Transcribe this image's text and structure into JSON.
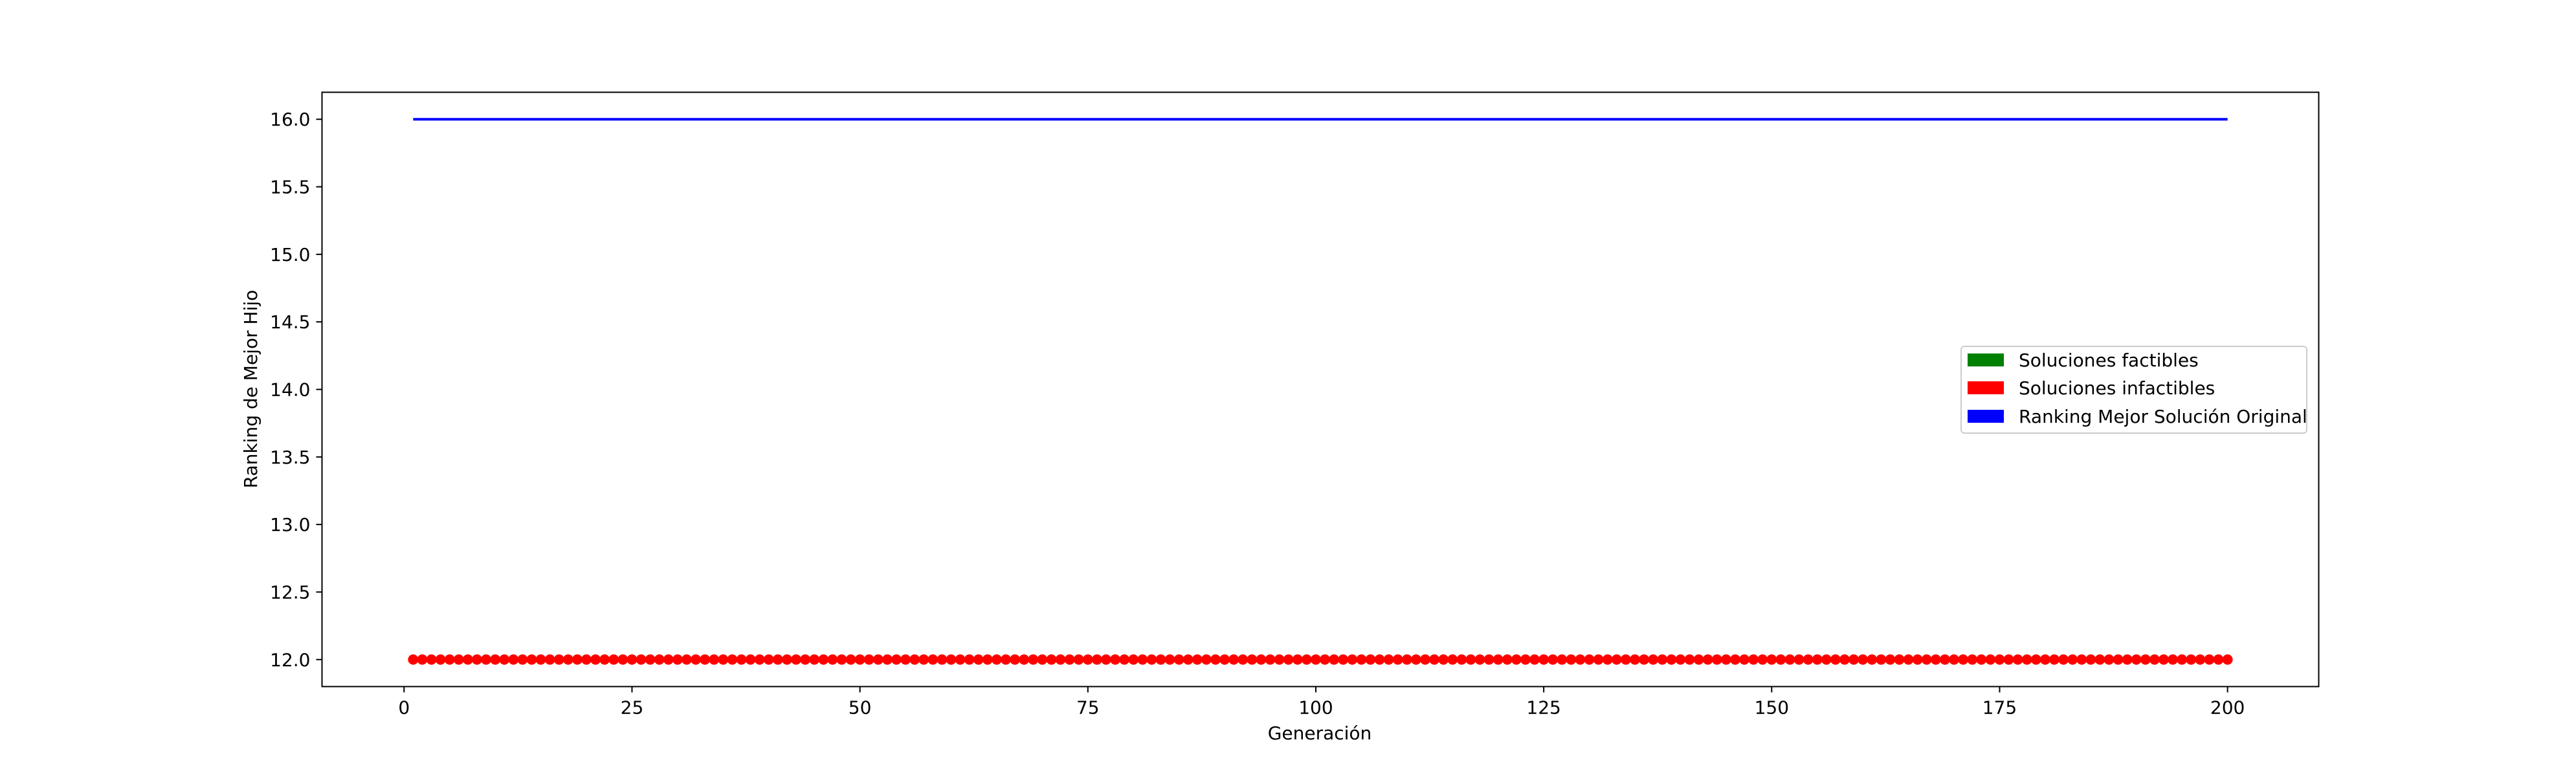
{
  "chart_data": {
    "type": "scatter",
    "title": "",
    "xlabel": "Generación",
    "ylabel": "Ranking de Mejor Hijo",
    "xlim": [
      -9,
      210
    ],
    "ylim": [
      11.8,
      16.2
    ],
    "x_ticks": [
      0,
      25,
      50,
      75,
      100,
      125,
      150,
      175,
      200
    ],
    "x_tick_labels": [
      "0",
      "25",
      "50",
      "75",
      "100",
      "125",
      "150",
      "175",
      "200"
    ],
    "y_ticks": [
      12.0,
      12.5,
      13.0,
      13.5,
      14.0,
      14.5,
      15.0,
      15.5,
      16.0
    ],
    "y_tick_labels": [
      "12.0",
      "12.5",
      "13.0",
      "13.5",
      "14.0",
      "14.5",
      "15.0",
      "15.5",
      "16.0"
    ],
    "grid": false,
    "legend_position": "center-right",
    "legend": [
      {
        "label": "Soluciones factibles",
        "color": "#008000"
      },
      {
        "label": "Soluciones infactibles",
        "color": "#ff0000"
      },
      {
        "label": "Ranking Mejor Solución Original",
        "color": "#0000ff"
      }
    ],
    "series": [
      {
        "kind": "scatter",
        "color": "#ff0000",
        "x_start": 1,
        "x_end": 200,
        "x_step": 1,
        "y": 12.0
      },
      {
        "kind": "line",
        "color": "#0000ff",
        "x": [
          1,
          200
        ],
        "y": [
          16.0,
          16.0
        ]
      }
    ]
  }
}
